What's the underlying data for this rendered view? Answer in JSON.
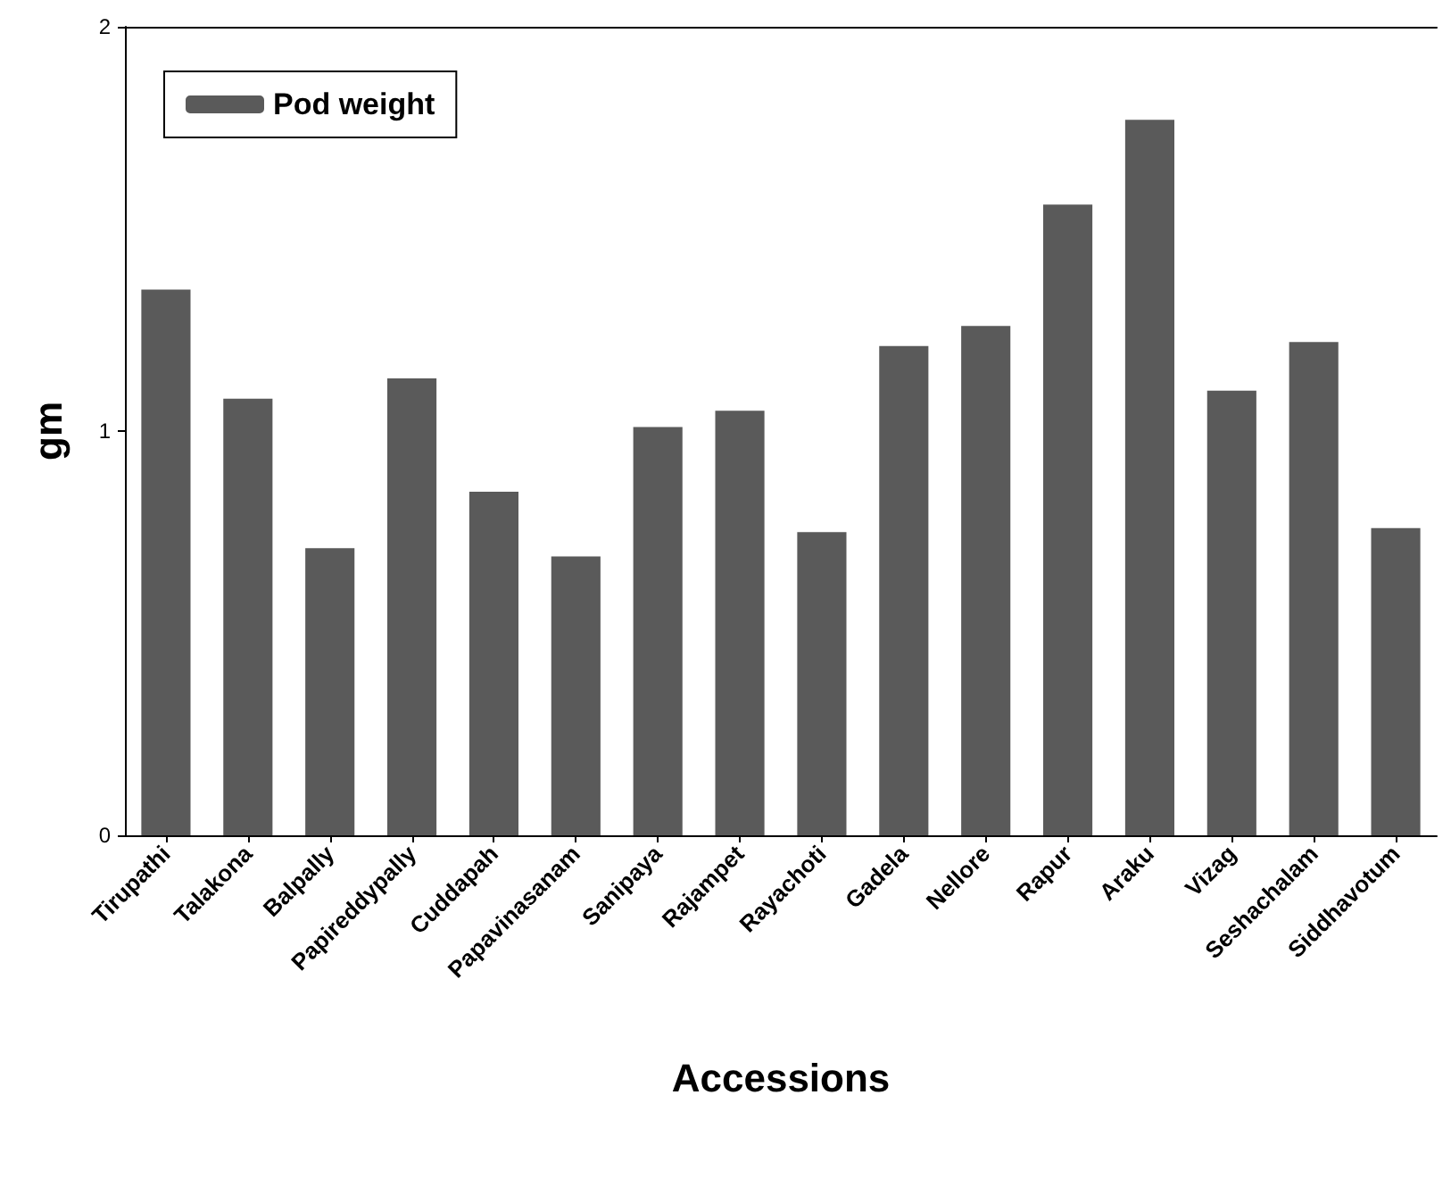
{
  "chart_data": {
    "type": "bar",
    "xlabel": "Accessions",
    "ylabel": "gm",
    "categories": [
      "Tirupathi",
      "Talakona",
      "Balpally",
      "Papireddypally",
      "Cuddapah",
      "Papavinasanam",
      "Sanipaya",
      "Rajampet",
      "Rayachoti",
      "Gadela",
      "Nellore",
      "Rapur",
      "Araku",
      "Vizag",
      "Seshachalam",
      "Siddhavotum"
    ],
    "series": [
      {
        "name": "Pod weight",
        "color": "#5a5a5a",
        "values": [
          1.35,
          1.08,
          0.71,
          1.13,
          0.85,
          0.69,
          1.01,
          1.05,
          0.75,
          1.21,
          1.26,
          1.56,
          1.77,
          1.1,
          1.22,
          0.76
        ]
      }
    ],
    "ylim": [
      0,
      2
    ],
    "yticks": [
      0,
      1,
      2
    ],
    "grid": false,
    "legend": "top left"
  }
}
